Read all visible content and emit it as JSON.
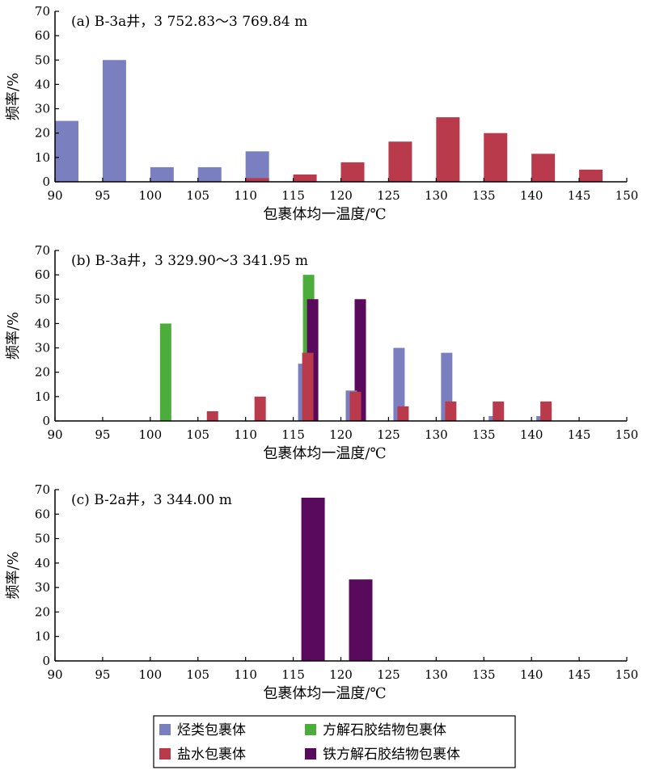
{
  "chart_data": [
    {
      "type": "bar",
      "title": "(a) B-3a井，3 752.83～3 769.84 m",
      "xlabel": "包裹体均一温度/℃",
      "ylabel": "频率/%",
      "xlim": [
        90,
        150
      ],
      "ylim": [
        0,
        70
      ],
      "xticks": [
        "90",
        "95",
        "100",
        "105",
        "110",
        "115",
        "120",
        "125",
        "130",
        "135",
        "140",
        "145",
        "150"
      ],
      "yticks": [
        "0",
        "10",
        "20",
        "30",
        "40",
        "50",
        "60",
        "70"
      ],
      "series": [
        {
          "key": "hydrocarbon",
          "points": [
            {
              "x": 90,
              "y": 25
            },
            {
              "x": 95,
              "y": 50
            },
            {
              "x": 100,
              "y": 6
            },
            {
              "x": 105,
              "y": 6
            },
            {
              "x": 110,
              "y": 12.5
            }
          ]
        },
        {
          "key": "brine",
          "points": [
            {
              "x": 110,
              "y": 1.5
            },
            {
              "x": 115,
              "y": 3
            },
            {
              "x": 120,
              "y": 8
            },
            {
              "x": 125,
              "y": 16.5
            },
            {
              "x": 130,
              "y": 26.5
            },
            {
              "x": 135,
              "y": 20
            },
            {
              "x": 140,
              "y": 11.5
            },
            {
              "x": 145,
              "y": 5
            }
          ]
        }
      ]
    },
    {
      "type": "bar",
      "title": "(b) B-3a井，3 329.90～3 341.95 m",
      "xlabel": "包裹体均一温度/℃",
      "ylabel": "频率/%",
      "xlim": [
        90,
        150
      ],
      "ylim": [
        0,
        70
      ],
      "xticks": [
        "90",
        "95",
        "100",
        "105",
        "110",
        "115",
        "120",
        "125",
        "130",
        "135",
        "140",
        "145",
        "150"
      ],
      "yticks": [
        "0",
        "10",
        "20",
        "30",
        "40",
        "50",
        "60",
        "70"
      ],
      "series": [
        {
          "key": "calcite",
          "points": [
            {
              "x": 100,
              "y": 40
            },
            {
              "x": 115,
              "y": 60
            }
          ]
        },
        {
          "key": "ferro_calcite",
          "points": [
            {
              "x": 115,
              "y": 50
            },
            {
              "x": 120,
              "y": 50
            }
          ]
        },
        {
          "key": "hydrocarbon",
          "points": [
            {
              "x": 115,
              "y": 23.5
            },
            {
              "x": 120,
              "y": 12.5
            },
            {
              "x": 125,
              "y": 30
            },
            {
              "x": 130,
              "y": 28
            },
            {
              "x": 135,
              "y": 2
            },
            {
              "x": 140,
              "y": 2
            }
          ]
        },
        {
          "key": "brine",
          "points": [
            {
              "x": 105,
              "y": 4
            },
            {
              "x": 110,
              "y": 10
            },
            {
              "x": 115,
              "y": 28
            },
            {
              "x": 120,
              "y": 12
            },
            {
              "x": 125,
              "y": 6
            },
            {
              "x": 130,
              "y": 8
            },
            {
              "x": 135,
              "y": 8
            },
            {
              "x": 140,
              "y": 8
            }
          ]
        }
      ]
    },
    {
      "type": "bar",
      "title": "(c) B-2a井，3 344.00 m",
      "xlabel": "包裹体均一温度/℃",
      "ylabel": "频率/%",
      "xlim": [
        90,
        150
      ],
      "ylim": [
        0,
        70
      ],
      "xticks": [
        "90",
        "95",
        "100",
        "105",
        "110",
        "115",
        "120",
        "125",
        "130",
        "135",
        "140",
        "145",
        "150"
      ],
      "yticks": [
        "0",
        "10",
        "20",
        "30",
        "40",
        "50",
        "60",
        "70"
      ],
      "series": [
        {
          "key": "ferro_calcite",
          "points": [
            {
              "x": 115,
              "y": 66.7
            },
            {
              "x": 120,
              "y": 33.3
            }
          ]
        }
      ]
    }
  ],
  "legend": [
    {
      "key": "hydrocarbon",
      "name": "烃类包裹体",
      "color": "#7a7fc0"
    },
    {
      "key": "calcite",
      "name": "方解石胶结物包裹体",
      "color": "#4cac3c"
    },
    {
      "key": "brine",
      "name": "盐水包裹体",
      "color": "#b93a4a"
    },
    {
      "key": "ferro_calcite",
      "name": "铁方解石胶结物包裹体",
      "color": "#5a0a5c"
    }
  ]
}
